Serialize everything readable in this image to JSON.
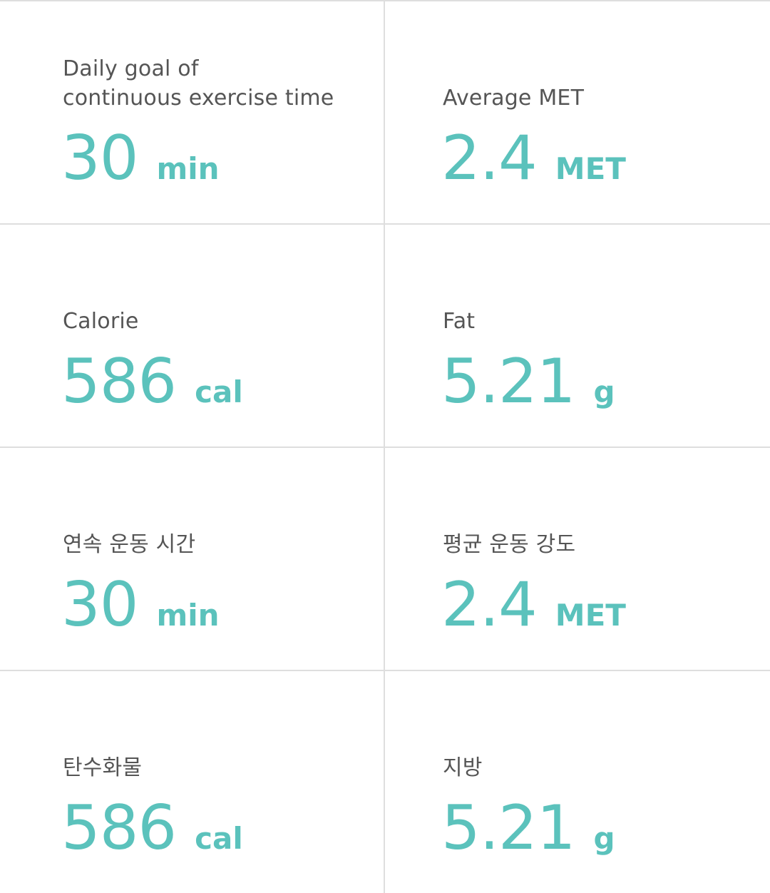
{
  "cards": [
    {
      "label_lines": [
        "Daily goal of",
        "continuous exercise time"
      ],
      "value": "30",
      "unit": "min"
    },
    {
      "label_lines": [
        "Average MET"
      ],
      "value": "2.4",
      "unit": "MET"
    },
    {
      "label_lines": [
        "Calorie"
      ],
      "value": "586",
      "unit": "cal"
    },
    {
      "label_lines": [
        "Fat"
      ],
      "value": "5.21",
      "unit": "g"
    },
    {
      "label_lines": [
        "연속 운동 시간"
      ],
      "value": "30",
      "unit": "min"
    },
    {
      "label_lines": [
        "평균 운동 강도"
      ],
      "value": "2.4",
      "unit": "MET"
    },
    {
      "label_lines": [
        "탄수화물"
      ],
      "value": "586",
      "unit": "cal"
    },
    {
      "label_lines": [
        "지방"
      ],
      "value": "5.21",
      "unit": "g"
    }
  ],
  "colors": {
    "accent": "#5bc2bc",
    "label": "#555555",
    "divider": "#dedede",
    "background": "#ffffff"
  }
}
